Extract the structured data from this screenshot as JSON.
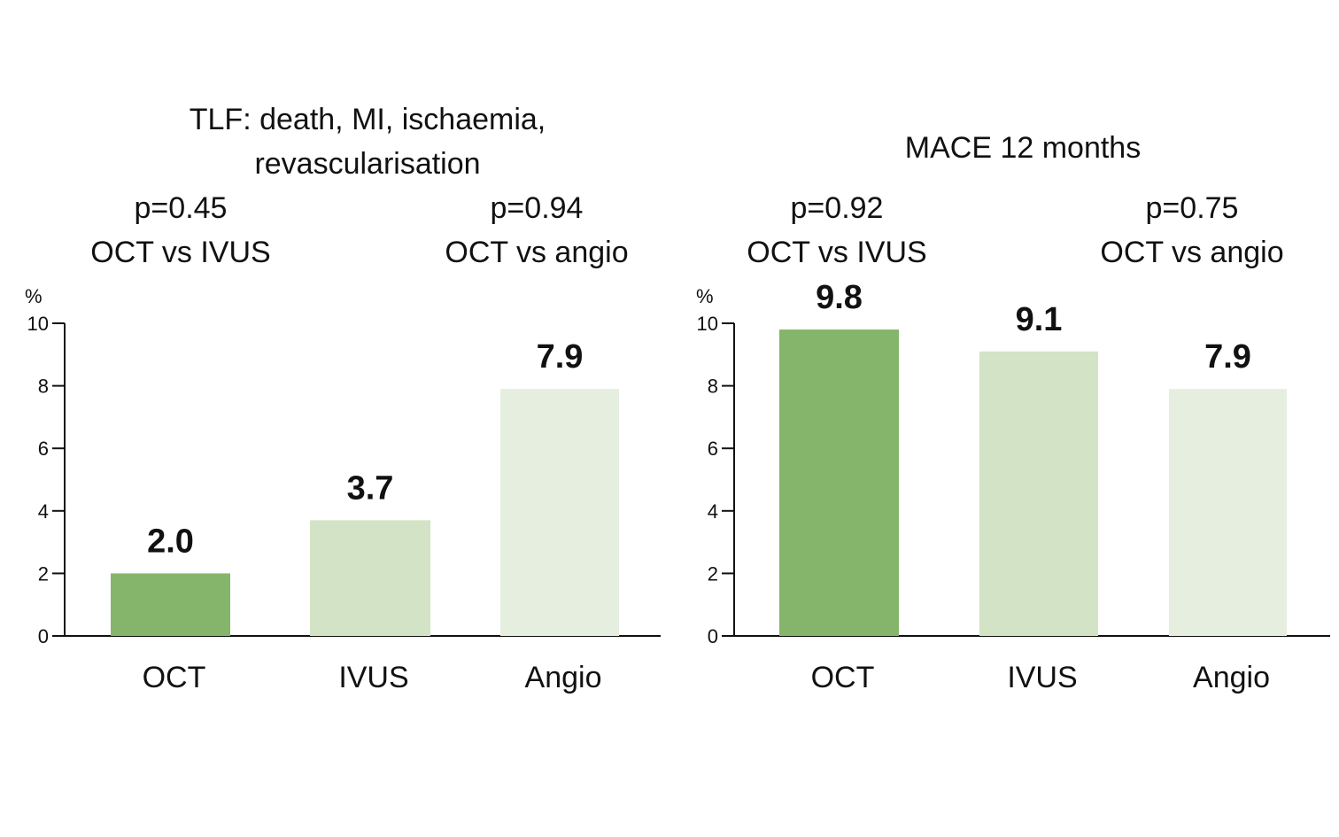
{
  "chart_data": [
    {
      "type": "bar",
      "title": [
        "TLF: death, MI, ischaemia,",
        "revascularisation"
      ],
      "categories": [
        "OCT",
        "IVUS",
        "Angio"
      ],
      "values": [
        2.0,
        3.7,
        7.9
      ],
      "value_labels": [
        "2.0",
        "3.7",
        "7.9"
      ],
      "colors": [
        "#85b56a",
        "#d3e3c6",
        "#e6efdf"
      ],
      "annotations": [
        {
          "p": "p=0.45",
          "comparison": "OCT vs IVUS"
        },
        {
          "p": "p=0.94",
          "comparison": "OCT vs angio"
        }
      ],
      "ylabel": "%",
      "ylim": [
        0,
        10
      ],
      "yticks": [
        "0",
        "2",
        "4",
        "6",
        "8",
        "10"
      ],
      "grid": false
    },
    {
      "type": "bar",
      "title": [
        "MACE 12 months"
      ],
      "categories": [
        "OCT",
        "IVUS",
        "Angio"
      ],
      "values": [
        9.8,
        9.1,
        7.9
      ],
      "value_labels": [
        "9.8",
        "9.1",
        "7.9"
      ],
      "colors": [
        "#85b56a",
        "#d3e3c6",
        "#e6efdf"
      ],
      "annotations": [
        {
          "p": "p=0.92",
          "comparison": "OCT vs IVUS"
        },
        {
          "p": "p=0.75",
          "comparison": "OCT vs angio"
        }
      ],
      "ylabel": "%",
      "ylim": [
        0,
        10
      ],
      "yticks": [
        "0",
        "2",
        "4",
        "6",
        "8",
        "10"
      ],
      "grid": false
    }
  ]
}
